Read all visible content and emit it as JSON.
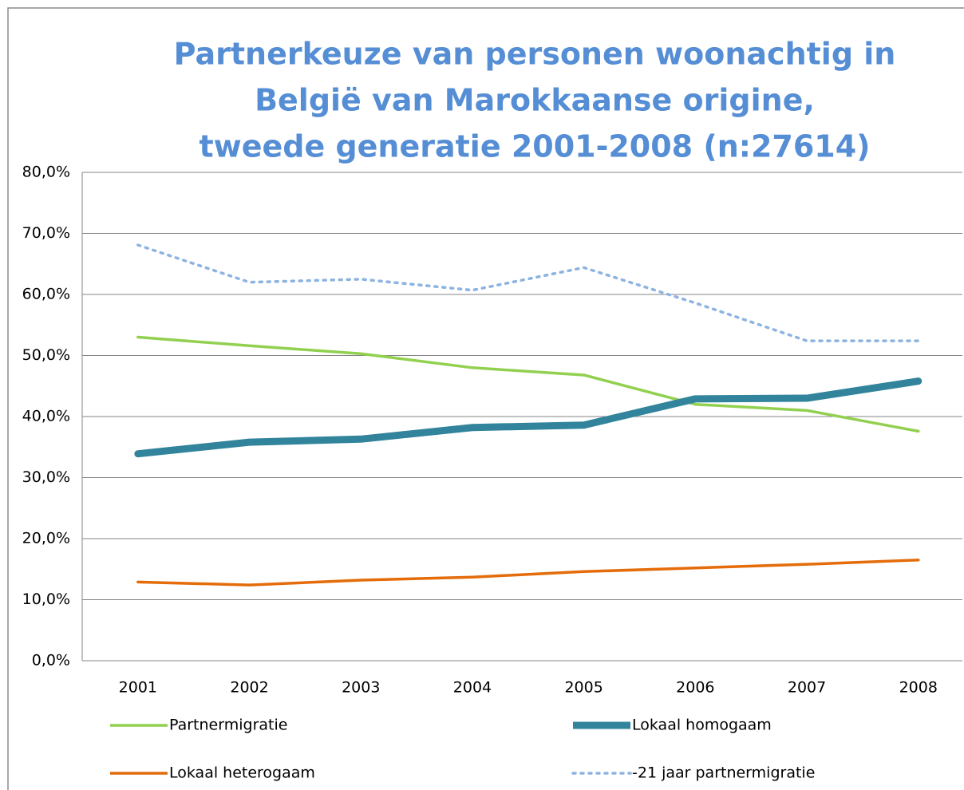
{
  "chart_data": {
    "type": "line",
    "title": [
      "Partnerkeuze van personen woonachtig in",
      "België van Marokkaanse origine,",
      "tweede generatie  2001-2008 (n:27614)"
    ],
    "categories": [
      "2001",
      "2002",
      "2003",
      "2004",
      "2005",
      "2006",
      "2007",
      "2008"
    ],
    "series": [
      {
        "name": "Partnermigratie",
        "color": "#92d050",
        "style": "solid",
        "values": [
          53.0,
          51.6,
          50.3,
          48.0,
          46.8,
          42.0,
          41.0,
          37.6
        ]
      },
      {
        "name": "Lokaal homogaam",
        "color": "#31849b",
        "style": "thick",
        "values": [
          33.9,
          35.8,
          36.3,
          38.2,
          38.6,
          42.9,
          43.0,
          45.8
        ]
      },
      {
        "name": "Lokaal heterogaam",
        "color": "#e46c0a",
        "style": "solid",
        "values": [
          12.9,
          12.4,
          13.2,
          13.7,
          14.6,
          15.2,
          15.8,
          16.5
        ]
      },
      {
        "name": "-21 jaar partnermigratie",
        "color": "#8db3e2",
        "style": "dotted",
        "values": [
          68.1,
          62.0,
          62.5,
          60.7,
          64.4,
          58.6,
          52.4,
          52.4
        ]
      }
    ],
    "ylim": [
      0,
      80
    ],
    "yticks": [
      {
        "value": 0,
        "label": "0,0%"
      },
      {
        "value": 10,
        "label": "10,0%"
      },
      {
        "value": 20,
        "label": "20,0%"
      },
      {
        "value": 30,
        "label": "30,0%"
      },
      {
        "value": 40,
        "label": "40,0%"
      },
      {
        "value": 50,
        "label": "50,0%"
      },
      {
        "value": 60,
        "label": "60,0%"
      },
      {
        "value": 70,
        "label": "70,0%"
      },
      {
        "value": 80,
        "label": "80,0%"
      }
    ],
    "grid": true,
    "legend": "bottom"
  }
}
